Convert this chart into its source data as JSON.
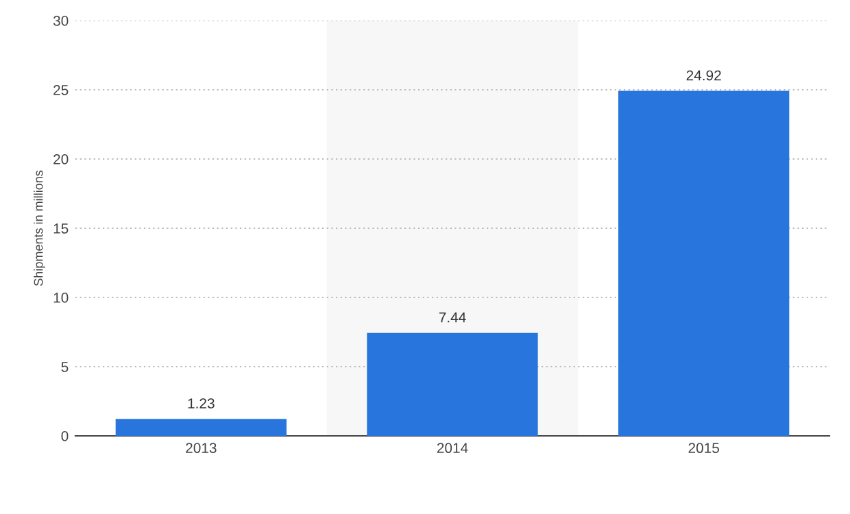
{
  "chart_data": {
    "type": "bar",
    "ylabel": "Shipments in millions",
    "categories": [
      "2013",
      "2014",
      "2015"
    ],
    "values": [
      1.23,
      7.44,
      24.92
    ],
    "color": "#2876dd",
    "ylim": [
      0,
      30
    ],
    "yticks": [
      0,
      5,
      10,
      15,
      20,
      25,
      30
    ],
    "grid": "y",
    "data_labels": true,
    "bands": [
      {
        "axis": "x",
        "from": "2014",
        "to": "2014",
        "color": "#f7f7f7"
      }
    ]
  }
}
